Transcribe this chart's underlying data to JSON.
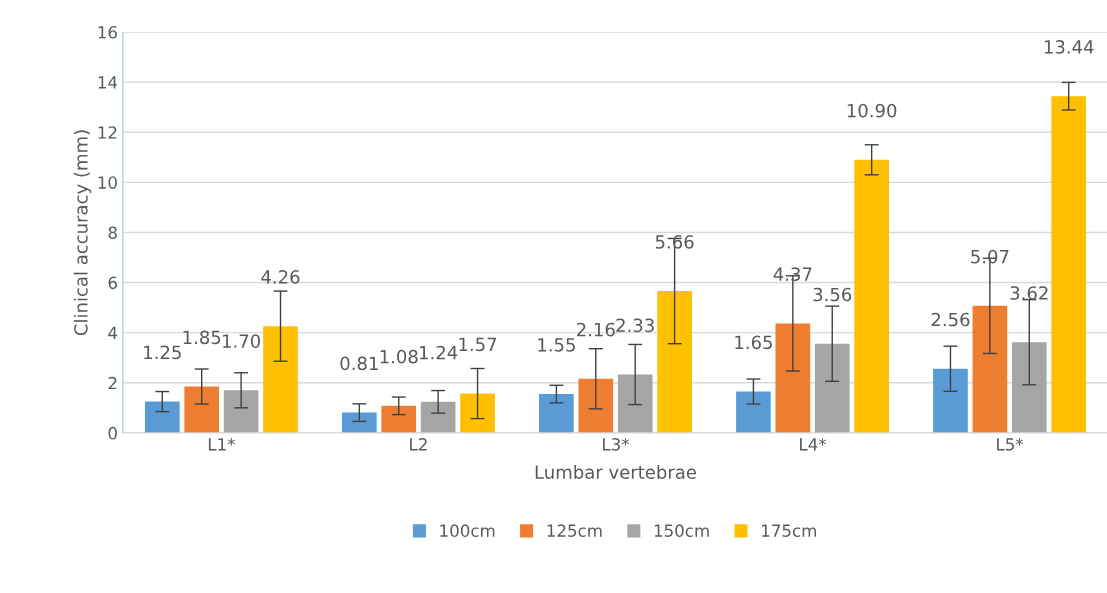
{
  "chart_data": {
    "type": "bar",
    "xlabel": "Lumbar vertebrae",
    "ylabel": "Clinical accuracy (mm)",
    "categories": [
      "L1*",
      "L2",
      "L3*",
      "L4*",
      "L5*"
    ],
    "series": [
      {
        "name": "100cm",
        "color": "#5b9bd5",
        "values": [
          1.25,
          0.81,
          1.55,
          1.65,
          2.56
        ],
        "errors": [
          0.4,
          0.35,
          0.35,
          0.5,
          0.9
        ]
      },
      {
        "name": "125cm",
        "color": "#ed7d31",
        "values": [
          1.85,
          1.08,
          2.16,
          4.37,
          5.07
        ],
        "errors": [
          0.7,
          0.35,
          1.2,
          1.9,
          1.9
        ]
      },
      {
        "name": "150cm",
        "color": "#a5a5a5",
        "values": [
          1.7,
          1.24,
          2.33,
          3.56,
          3.62
        ],
        "errors": [
          0.7,
          0.45,
          1.2,
          1.5,
          1.7
        ]
      },
      {
        "name": "175cm",
        "color": "#ffc000",
        "values": [
          4.26,
          1.57,
          5.66,
          10.9,
          13.44
        ],
        "errors": [
          1.4,
          1.0,
          2.1,
          0.6,
          0.55
        ]
      }
    ],
    "value_labels": [
      [
        "1.25",
        "0.81",
        "1.55",
        "1.65",
        "2.56"
      ],
      [
        "1.85",
        "1.08",
        "2.16",
        "4.37",
        "5.07"
      ],
      [
        "1.70",
        "1.24",
        "2.33",
        "3.56",
        "3.62"
      ],
      [
        "4.26",
        "1.57",
        "5.66",
        "10.90",
        "13.44"
      ]
    ],
    "ylim": [
      0,
      16
    ],
    "yticks": [
      0,
      2,
      4,
      6,
      8,
      10,
      12,
      14,
      16
    ],
    "grid": "y",
    "legend": "bottom"
  }
}
